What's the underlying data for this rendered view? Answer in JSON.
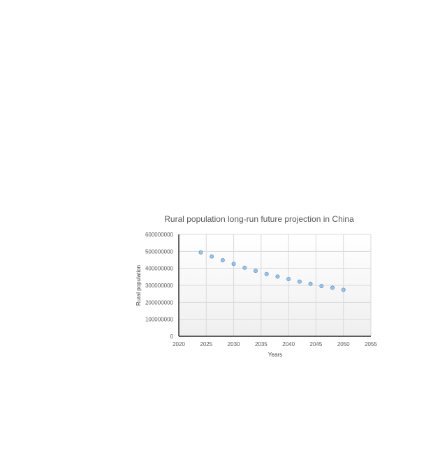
{
  "chart_data": {
    "type": "scatter",
    "title": "Rural population long-run future projection in China",
    "xlabel": "Years",
    "ylabel": "Rural population",
    "xlim": [
      2020,
      2055
    ],
    "ylim": [
      0,
      600000000
    ],
    "x_ticks": [
      "2020",
      "2025",
      "2030",
      "2035",
      "2040",
      "2045",
      "2050",
      "2055"
    ],
    "y_ticks": [
      "0",
      "100000000",
      "200000000",
      "300000000",
      "400000000",
      "500000000",
      "600000000"
    ],
    "grid": true,
    "legend": "none",
    "marker_color": "#9dc3e6",
    "marker_edge": "#5b9bd5",
    "series": [
      {
        "x": [
          2024,
          2026,
          2028,
          2030,
          2032,
          2034,
          2036,
          2038,
          2040,
          2042,
          2044,
          2046,
          2048,
          2050
        ],
        "y": [
          494000000,
          470000000,
          448000000,
          427000000,
          404000000,
          386000000,
          367000000,
          352000000,
          337000000,
          322000000,
          309000000,
          296000000,
          286000000,
          274000000
        ]
      }
    ]
  }
}
